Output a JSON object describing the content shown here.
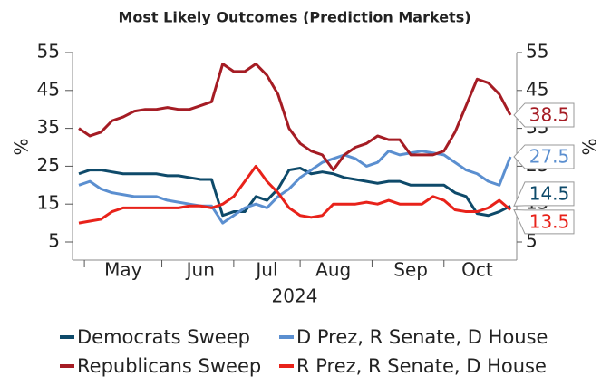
{
  "chart_data": {
    "type": "line",
    "title": "Most Likely Outcomes (Prediction Markets)",
    "y_label": "%",
    "y2_label": "%",
    "x_label": "2024",
    "categories": [
      null,
      null,
      null,
      null,
      "May",
      null,
      null,
      null,
      null,
      null,
      null,
      "Jun",
      null,
      null,
      null,
      null,
      null,
      "Jul",
      null,
      null,
      null,
      null,
      null,
      "Aug",
      null,
      null,
      null,
      null,
      null,
      null,
      "Sep",
      null,
      null,
      null,
      null,
      null,
      "Oct",
      null,
      null,
      null
    ],
    "ylim": [
      5,
      55
    ],
    "yticks": [
      5,
      15,
      25,
      35,
      45,
      55
    ],
    "y2lim": [
      5,
      55
    ],
    "y2ticks": [
      5,
      15,
      25,
      35,
      45,
      55
    ],
    "series": [
      {
        "name": "Democrats Sweep",
        "color": "#0e4a6a",
        "values": [
          23,
          24,
          24,
          23.5,
          23,
          23,
          23,
          23,
          22.5,
          22.5,
          22,
          21.5,
          21.5,
          12,
          13,
          13,
          17,
          16,
          19,
          24,
          24.5,
          23,
          23.5,
          23,
          22,
          21.5,
          21,
          20.5,
          21,
          21,
          20,
          20,
          20,
          20,
          18,
          17,
          12.5,
          12,
          13,
          14.5
        ]
      },
      {
        "name": "D Prez, R Senate, D House",
        "color": "#5b8fd0",
        "values": [
          20,
          21,
          19,
          18,
          17.5,
          17,
          17,
          17,
          16,
          15.5,
          15,
          14.5,
          14.5,
          10,
          12,
          14,
          15,
          14,
          17,
          19,
          22,
          24,
          26,
          27,
          28,
          27,
          25,
          26,
          29,
          28,
          28.5,
          29,
          28.5,
          28,
          26,
          24,
          23,
          21,
          20,
          27.5
        ]
      },
      {
        "name": "Republicans Sweep",
        "color": "#a51c24",
        "values": [
          35,
          33,
          34,
          37,
          38,
          39.5,
          40,
          40,
          40.5,
          40,
          40,
          41,
          42,
          52,
          50,
          50,
          52,
          49,
          44,
          35,
          31,
          29,
          28,
          24,
          28,
          30,
          31,
          33,
          32,
          32,
          28,
          28,
          28,
          29,
          34,
          41,
          48,
          47,
          44,
          38.5
        ]
      },
      {
        "name": "R Prez, R Senate, D House",
        "color": "#e8221a",
        "values": [
          10,
          10.5,
          11,
          13,
          14,
          14,
          14,
          14,
          14,
          14,
          14.5,
          14.5,
          14,
          15,
          17,
          21,
          25,
          21,
          18,
          14,
          12,
          11.5,
          12,
          15,
          15,
          15,
          15.5,
          15,
          16,
          15,
          15,
          15,
          17,
          16,
          13.5,
          13,
          13,
          14,
          16,
          13.5
        ]
      }
    ]
  }
}
